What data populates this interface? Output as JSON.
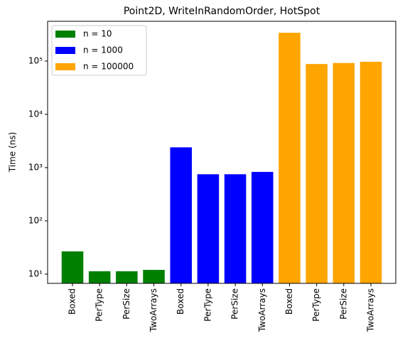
{
  "chart_data": {
    "type": "bar",
    "title": "Point2D, WriteInRandomOrder, HotSpot",
    "ylabel": "Time (ns)",
    "categories": [
      "Boxed",
      "PerType",
      "PerSize",
      "TwoArrays",
      "Boxed",
      "PerType",
      "PerSize",
      "TwoArrays",
      "Boxed",
      "PerType",
      "PerSize",
      "TwoArrays"
    ],
    "series": [
      {
        "name": "n = 10",
        "color": "#008000",
        "values": [
          26.7,
          11.3,
          11.3,
          12,
          null,
          null,
          null,
          null,
          null,
          null,
          null,
          null
        ]
      },
      {
        "name": "n = 1000",
        "color": "#0000ff",
        "values": [
          null,
          null,
          null,
          null,
          2400,
          750,
          750,
          830,
          null,
          null,
          null,
          null
        ]
      },
      {
        "name": "n = 100000",
        "color": "#ffa500",
        "values": [
          null,
          null,
          null,
          null,
          null,
          null,
          null,
          null,
          340000,
          88000,
          92000,
          97000
        ]
      }
    ],
    "log_scale": true,
    "ylim": [
      6.7,
      558000
    ],
    "yticks": [
      {
        "value": 10,
        "label": "10¹"
      },
      {
        "value": 100,
        "label": "10²"
      },
      {
        "value": 1000,
        "label": "10³"
      },
      {
        "value": 10000,
        "label": "10⁴"
      },
      {
        "value": 100000,
        "label": "10⁵"
      }
    ],
    "grid": false,
    "legend": "upper-left"
  }
}
